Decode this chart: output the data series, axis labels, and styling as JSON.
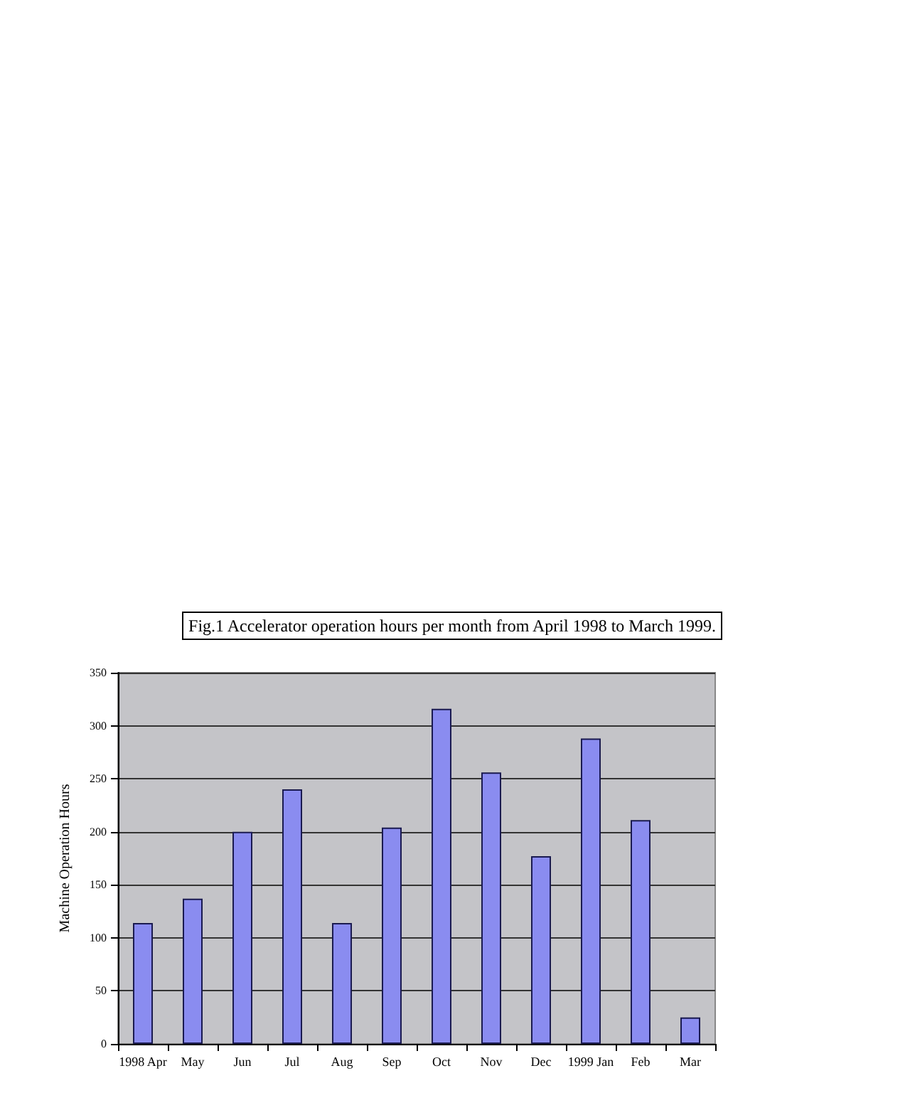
{
  "chart_data": {
    "type": "bar",
    "title": "Fig.1 Accelerator operation hours per month from April 1998 to March 1999.",
    "ylabel": "Machine Operation Hours",
    "categories": [
      "1998 Apr",
      "May",
      "Jun",
      "Jul",
      "Aug",
      "Sep",
      "Oct",
      "Nov",
      "Dec",
      "1999 Jan",
      "Feb",
      "Mar"
    ],
    "values": [
      114,
      137,
      200,
      240,
      114,
      204,
      316,
      256,
      177,
      288,
      211,
      25
    ],
    "color": "#8a8cf0",
    "ylim": [
      0,
      350
    ],
    "yticks": [
      0,
      50,
      100,
      150,
      200,
      250,
      300,
      350
    ],
    "grid": true
  }
}
